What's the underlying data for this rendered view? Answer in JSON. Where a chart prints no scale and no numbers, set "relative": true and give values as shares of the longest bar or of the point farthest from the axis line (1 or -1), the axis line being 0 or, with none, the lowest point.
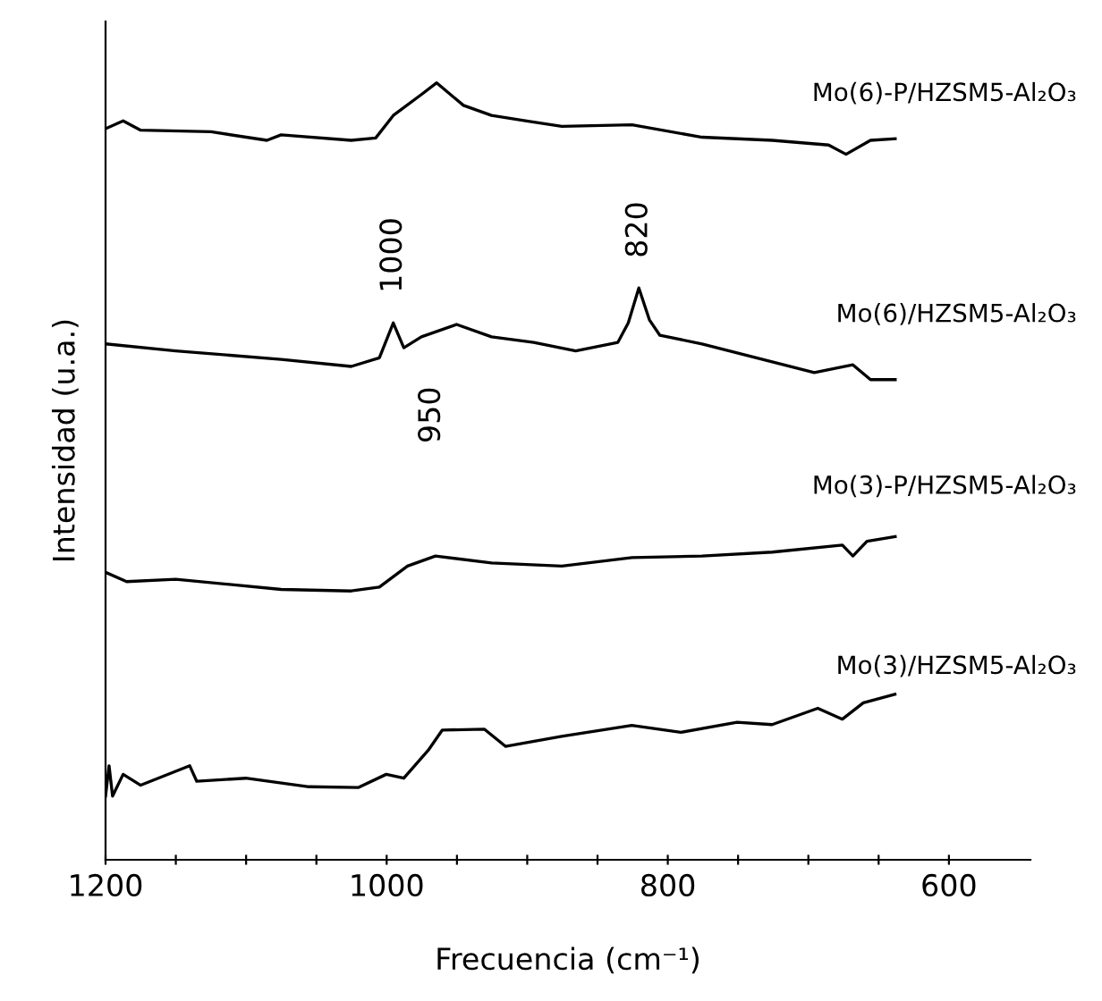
{
  "chart_data": {
    "type": "line",
    "relative": true,
    "xlabel": "Frecuencia (cm⁻¹)",
    "ylabel": "Intensidad (u.a.)",
    "xlim": [
      1200,
      542
    ],
    "xticks": [
      1200,
      {
        "value": 1150,
        "label": null
      },
      {
        "value": 1100,
        "label": null
      },
      {
        "value": 1050,
        "label": null
      },
      1000,
      {
        "value": 950,
        "label": null
      },
      {
        "value": 900,
        "label": null
      },
      {
        "value": 850,
        "label": null
      },
      800,
      {
        "value": 750,
        "label": null
      },
      {
        "value": 700,
        "label": null
      },
      {
        "value": 650,
        "label": null
      },
      600
    ],
    "tick_labels": "x",
    "grid": false,
    "legend": false,
    "marker": "none",
    "line_style": "solid",
    "series": [
      {
        "name": "Mo(6)-P/HZSM5-Al₂O₃",
        "color": "#000000",
        "x": [
          1200,
          1187.5,
          1175,
          1125,
          1085.2,
          1075.1,
          1025.2,
          1007.8,
          995.3,
          975.3,
          964.4,
          945.4,
          925.4,
          900.4,
          875.4,
          825.5,
          775.6,
          725.7,
          685.6,
          673.2,
          655.8,
          638.2
        ],
        "values": [
          0.941,
          0.951,
          0.939,
          0.937,
          0.926,
          0.933,
          0.926,
          0.929,
          0.958,
          0.985,
          1.0,
          0.971,
          0.958,
          0.951,
          0.944,
          0.946,
          0.93,
          0.926,
          0.92,
          0.908,
          0.926,
          0.928
        ]
      },
      {
        "name": "Mo(6)/HZSM5-Al₂O₃",
        "color": "#000000",
        "x": [
          1200,
          1150.1,
          1075.1,
          1025.2,
          1005.2,
          995.3,
          987.8,
          975.3,
          950.3,
          925.4,
          895.4,
          865.5,
          835.5,
          828.1,
          820.6,
          813.1,
          805.6,
          775.6,
          725.7,
          695.8,
          668.3,
          655.8,
          638.2
        ],
        "values": [
          0.664,
          0.655,
          0.644,
          0.635,
          0.646,
          0.691,
          0.659,
          0.673,
          0.689,
          0.673,
          0.666,
          0.655,
          0.666,
          0.691,
          0.736,
          0.695,
          0.675,
          0.664,
          0.641,
          0.627,
          0.637,
          0.618,
          0.618
        ]
      },
      {
        "name": "Mo(3)-P/HZSM5-Al₂O₃",
        "color": "#000000",
        "x": [
          1200,
          1185,
          1150.1,
          1075.1,
          1025.2,
          1005.2,
          985.2,
          965.3,
          925.4,
          875.4,
          825.5,
          775.6,
          725.7,
          675.8,
          668.3,
          658.3,
          638.2
        ],
        "values": [
          0.37,
          0.358,
          0.361,
          0.348,
          0.346,
          0.351,
          0.378,
          0.391,
          0.382,
          0.378,
          0.389,
          0.391,
          0.396,
          0.405,
          0.391,
          0.41,
          0.416
        ]
      },
      {
        "name": "Mo(3)/HZSM5-Al₂O₃",
        "color": "#000000",
        "x": [
          1200,
          1197.5,
          1195,
          1187.5,
          1175,
          1140.1,
          1135.1,
          1100.2,
          1055.2,
          1020.3,
          1000.3,
          987.8,
          970.4,
          960.4,
          930.4,
          915.5,
          875.5,
          825.6,
          790.7,
          750.7,
          725.8,
          693.3,
          675.8,
          660.9,
          638.4
        ],
        "values": [
          0.082,
          0.121,
          0.082,
          0.11,
          0.096,
          0.121,
          0.101,
          0.105,
          0.094,
          0.093,
          0.11,
          0.105,
          0.141,
          0.167,
          0.168,
          0.146,
          0.159,
          0.173,
          0.164,
          0.177,
          0.174,
          0.195,
          0.181,
          0.202,
          0.213
        ]
      }
    ],
    "annotations": [
      {
        "text": "1000",
        "x": 995.3,
        "y": 0.691
      },
      {
        "text": "820",
        "x": 820.6,
        "y": 0.736
      },
      {
        "text": "950",
        "x": 950.3,
        "y": 0.689
      }
    ]
  }
}
